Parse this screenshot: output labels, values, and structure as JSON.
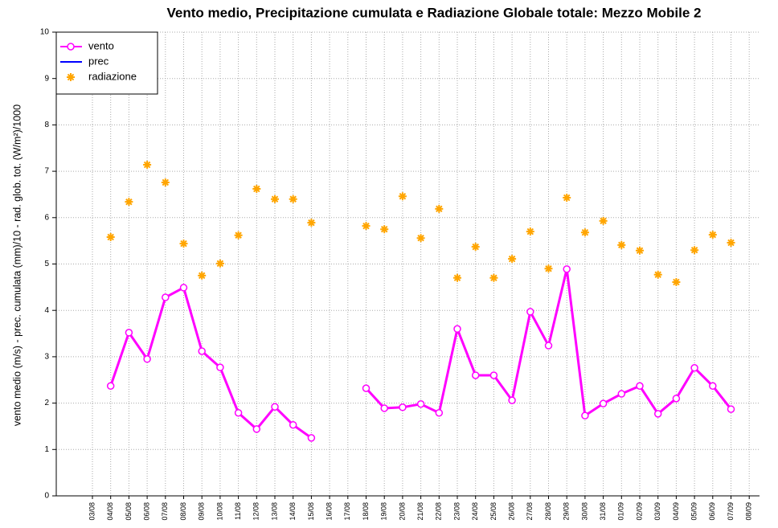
{
  "chart_data": {
    "type": "line",
    "title": "Vento medio, Precipitazione cumulata e Radiazione Globale totale: Mezzo Mobile 2",
    "y_label": "vento medio (m/s) - prec. cumulata (mm)/10 - rad. glob. tot. (W/m²)/1000",
    "categories": [
      "03/08",
      "04/08",
      "05/08",
      "06/08",
      "07/08",
      "08/08",
      "09/08",
      "10/08",
      "11/08",
      "12/08",
      "13/08",
      "14/08",
      "15/08",
      "16/08",
      "17/08",
      "18/08",
      "19/08",
      "20/08",
      "21/08",
      "22/08",
      "23/08",
      "24/08",
      "25/08",
      "26/08",
      "27/08",
      "28/08",
      "29/08",
      "30/08",
      "31/08",
      "01/09",
      "02/09",
      "03/09",
      "04/09",
      "05/09",
      "06/09",
      "07/09",
      "08/09"
    ],
    "series": [
      {
        "name": "vento",
        "color": "#ff00ff",
        "linestyle": "solid",
        "marker": "circle",
        "values": [
          null,
          2.37,
          3.52,
          2.95,
          4.28,
          4.49,
          3.12,
          2.77,
          1.79,
          1.44,
          1.92,
          1.53,
          1.25,
          null,
          null,
          2.32,
          1.89,
          1.91,
          1.98,
          1.79,
          3.6,
          2.6,
          2.6,
          2.06,
          3.97,
          3.24,
          4.89,
          1.73,
          1.99,
          2.2,
          2.37,
          1.77,
          2.1,
          2.76,
          2.37,
          1.87,
          null
        ]
      },
      {
        "name": "prec",
        "color": "#0000ff",
        "linestyle": "solid",
        "marker": "none",
        "values": [
          null,
          null,
          null,
          null,
          null,
          null,
          null,
          null,
          null,
          null,
          null,
          null,
          null,
          null,
          null,
          null,
          null,
          null,
          null,
          null,
          null,
          null,
          null,
          null,
          null,
          null,
          null,
          null,
          null,
          null,
          null,
          null,
          null,
          null,
          null,
          null,
          null
        ]
      },
      {
        "name": "radiazione",
        "color": "#ffa500",
        "linestyle": "none",
        "marker": "asterisk",
        "values": [
          null,
          5.58,
          6.34,
          7.14,
          6.76,
          5.44,
          4.75,
          5.01,
          5.62,
          6.62,
          6.4,
          6.4,
          5.89,
          null,
          null,
          5.82,
          5.75,
          6.46,
          5.56,
          6.19,
          4.7,
          5.37,
          4.7,
          5.11,
          5.7,
          4.9,
          6.43,
          5.68,
          5.93,
          5.41,
          5.29,
          4.77,
          4.61,
          5.3,
          5.63,
          5.46,
          null
        ]
      }
    ],
    "ylim": [
      0,
      10
    ],
    "yticks": [
      0,
      1,
      2,
      3,
      4,
      5,
      6,
      7,
      8,
      9,
      10
    ],
    "grid": true,
    "legend": "top-left"
  }
}
